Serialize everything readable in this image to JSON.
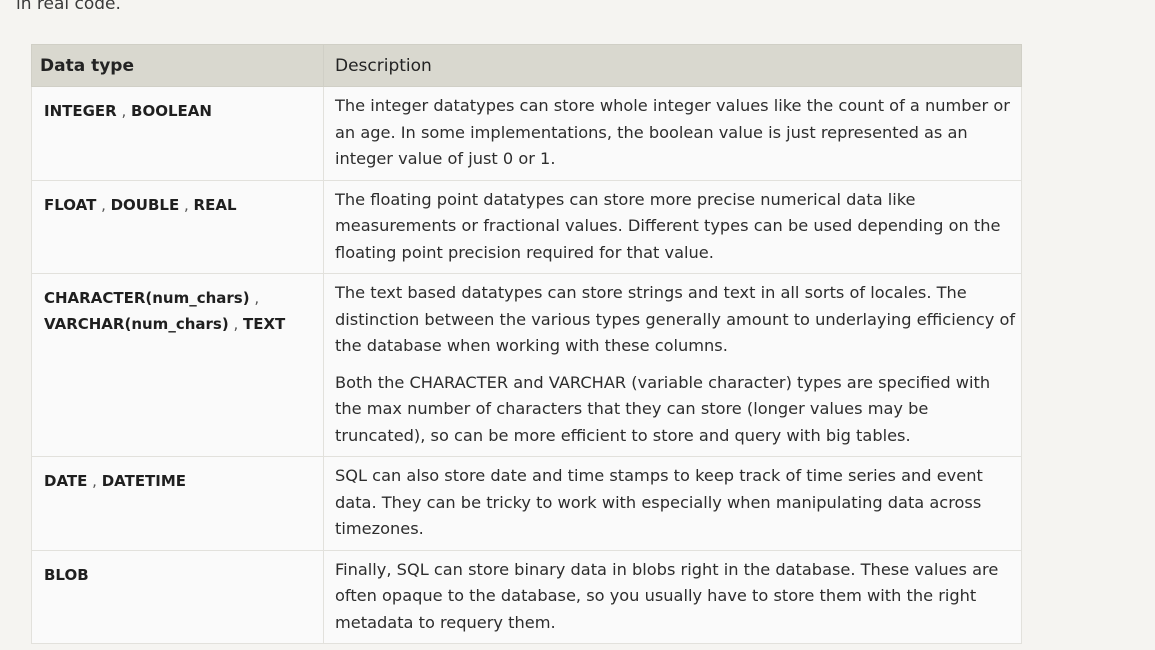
{
  "intro_text": "in real code.",
  "table": {
    "headers": [
      "Data type",
      "Description"
    ],
    "rows": [
      {
        "types": [
          "INTEGER",
          "BOOLEAN"
        ],
        "description": [
          "The integer datatypes can store whole integer values like the count of a number or an age. In some implementations, the boolean value is just represented as an integer value of just 0 or 1."
        ]
      },
      {
        "types": [
          "FLOAT",
          "DOUBLE",
          "REAL"
        ],
        "description": [
          "The floating point datatypes can store more precise numerical data like measurements or fractional values. Different types can be used depending on the floating point precision required for that value."
        ]
      },
      {
        "types": [
          "CHARACTER(num_chars)",
          "VARCHAR(num_chars)",
          "TEXT"
        ],
        "description": [
          "The text based datatypes can store strings and text in all sorts of locales. The distinction between the various types generally amount to underlaying efficiency of the database when working with these columns.",
          "Both the CHARACTER and VARCHAR (variable character) types are specified with the max number of characters that they can store (longer values may be truncated), so can be more efficient to store and query with big tables."
        ]
      },
      {
        "types": [
          "DATE",
          "DATETIME"
        ],
        "description": [
          "SQL can also store date and time stamps to keep track of time series and event data. They can be tricky to work with especially when manipulating data across timezones."
        ]
      },
      {
        "types": [
          "BLOB"
        ],
        "description": [
          "Finally, SQL can store binary data in blobs right in the database. These values are often opaque to the database, so you usually have to store them with the right metadata to requery them."
        ]
      }
    ]
  }
}
